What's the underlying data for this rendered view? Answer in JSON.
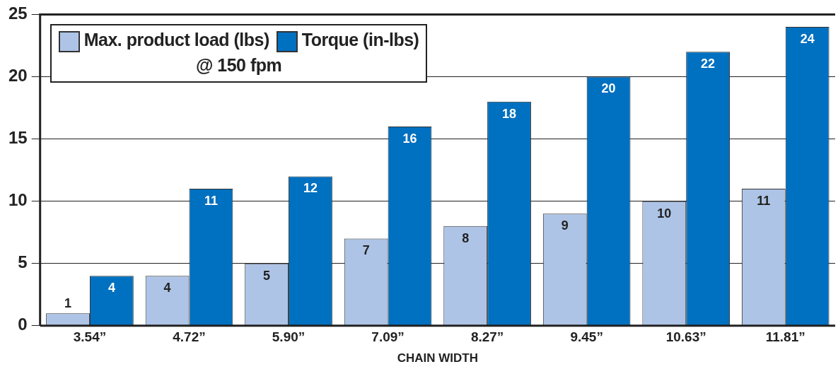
{
  "chart_data": {
    "type": "bar",
    "subtitle": "@ 150 fpm",
    "xlabel": "CHAIN WIDTH",
    "categories": [
      "3.54”",
      "4.72”",
      "5.90”",
      "7.09”",
      "8.27”",
      "9.45”",
      "10.63”",
      "11.81”"
    ],
    "series": [
      {
        "name": "Max. product load (lbs)",
        "color": "#aec4e6",
        "values": [
          1,
          4,
          5,
          7,
          8,
          9,
          10,
          11
        ]
      },
      {
        "name": "Torque (in-lbs)",
        "color": "#0070c0",
        "values": [
          4,
          11,
          12,
          16,
          18,
          20,
          22,
          24
        ]
      }
    ],
    "ylim": [
      0,
      25
    ],
    "yticks": [
      0,
      5,
      10,
      15,
      20,
      25
    ],
    "grid": "y",
    "legend": "top left",
    "data_labels": true
  }
}
